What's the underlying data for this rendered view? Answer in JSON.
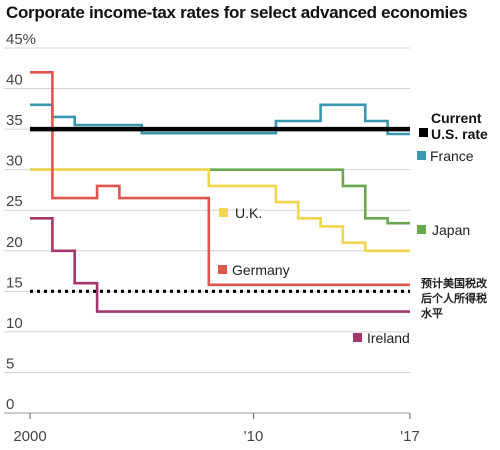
{
  "chart_data": {
    "type": "line",
    "title": "Corporate income-tax rates for select advanced economies",
    "xlim": [
      2000,
      2017
    ],
    "ylim": [
      0,
      45
    ],
    "y_ticks": [
      {
        "value": 45,
        "label": "45%"
      },
      {
        "value": 40,
        "label": "40"
      },
      {
        "value": 35,
        "label": "35"
      },
      {
        "value": 30,
        "label": "30"
      },
      {
        "value": 25,
        "label": "25"
      },
      {
        "value": 20,
        "label": "20"
      },
      {
        "value": 15,
        "label": "15"
      },
      {
        "value": 10,
        "label": "10"
      },
      {
        "value": 5,
        "label": "5"
      },
      {
        "value": 0,
        "label": "0"
      }
    ],
    "x_ticks": [
      {
        "value": 2000,
        "label": "2000"
      },
      {
        "value": 2010,
        "label": "'10"
      },
      {
        "value": 2017,
        "label": "'17"
      }
    ],
    "grid": true,
    "series": [
      {
        "name": "Japan",
        "color": "#6aa84f",
        "x": [
          2000,
          2014,
          2014,
          2015,
          2015,
          2016,
          2016,
          2017
        ],
        "y": [
          30,
          30,
          28,
          28,
          24,
          24,
          23.4,
          23.4
        ]
      },
      {
        "name": "France",
        "color": "#3a99b1",
        "x": [
          2000,
          2001,
          2001,
          2002,
          2002,
          2005,
          2005,
          2011,
          2011,
          2013,
          2013,
          2015,
          2015,
          2016,
          2016,
          2017
        ],
        "y": [
          38,
          38,
          36.5,
          36.5,
          35.5,
          35.5,
          34.5,
          34.5,
          36,
          36,
          38,
          38,
          36,
          36,
          34.4,
          34.4
        ]
      },
      {
        "name": "U.K.",
        "color": "#f2d64b",
        "x": [
          2000,
          2008,
          2008,
          2011,
          2011,
          2012,
          2012,
          2013,
          2013,
          2014,
          2014,
          2015,
          2015,
          2017
        ],
        "y": [
          30,
          30,
          28,
          28,
          26,
          26,
          24,
          24,
          23,
          23,
          21,
          21,
          20,
          20
        ]
      },
      {
        "name": "Germany",
        "color": "#e0564f",
        "x": [
          2000,
          2001,
          2001,
          2003,
          2003,
          2004,
          2004,
          2008,
          2008,
          2017
        ],
        "y": [
          42,
          42,
          26.5,
          26.5,
          28,
          28,
          26.5,
          26.5,
          15.8,
          15.8
        ]
      },
      {
        "name": "Ireland",
        "color": "#a3366e",
        "x": [
          2000,
          2001,
          2001,
          2002,
          2002,
          2003,
          2003,
          2017
        ],
        "y": [
          24,
          24,
          20,
          20,
          16,
          16,
          12.5,
          12.5
        ]
      },
      {
        "name": "Current U.S. rate",
        "color": "#000000",
        "x": [
          2000,
          2017
        ],
        "y": [
          35,
          35
        ]
      },
      {
        "name": "预计美国税改后个人所得税水平",
        "color": "#000000",
        "dashed": true,
        "x": [
          2000,
          2017
        ],
        "y": [
          15,
          15
        ]
      }
    ]
  },
  "labels": {
    "current": "Current",
    "us_rate": "U.S. rate",
    "france": "France",
    "uk": "U.K.",
    "japan": "Japan",
    "germany": "Germany",
    "ireland": "Ireland",
    "note_lines": [
      "预计美国税改",
      "后个人所得税",
      "水平"
    ]
  }
}
